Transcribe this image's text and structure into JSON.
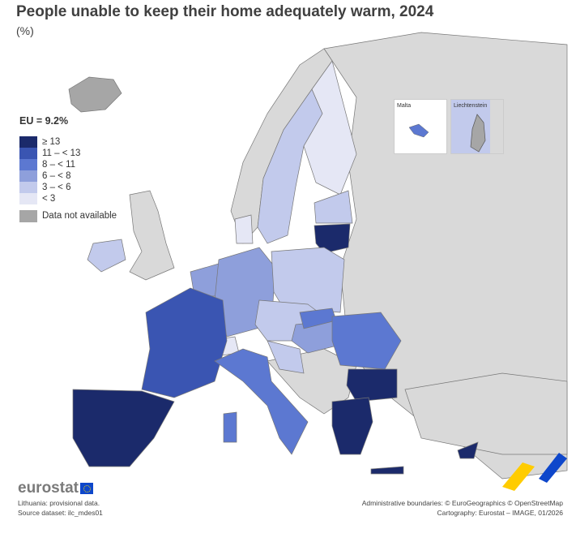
{
  "title": "People unable to keep their home adequately warm, 2024",
  "subtitle": "(%)",
  "legend": {
    "eu_value": "EU = 9.2%",
    "classes": [
      {
        "label": "≥ 13",
        "color": "#1b2a6b"
      },
      {
        "label": "11 – < 13",
        "color": "#3a55b2"
      },
      {
        "label": "8 – < 11",
        "color": "#5c78d1"
      },
      {
        "label": "6 – < 8",
        "color": "#8e9fdb"
      },
      {
        "label": "3 – < 6",
        "color": "#c2caec"
      },
      {
        "label": "< 3",
        "color": "#e5e7f5"
      }
    ],
    "na_label": "Data not available",
    "na_color": "#a6a6a6"
  },
  "insets": {
    "malta": "Malta",
    "liechtenstein": "Liechtenstein"
  },
  "footer": {
    "note": "Lithuania: provisional data.",
    "source": "Source dataset: ilc_mdes01",
    "boundaries": "Administrative boundaries: © EuroGeographics © OpenStreetMap",
    "cartography": "Cartography: Eurostat – IMAGE, 01/2026",
    "logo": "eurostat"
  },
  "background_color": "#d9d9d9"
}
